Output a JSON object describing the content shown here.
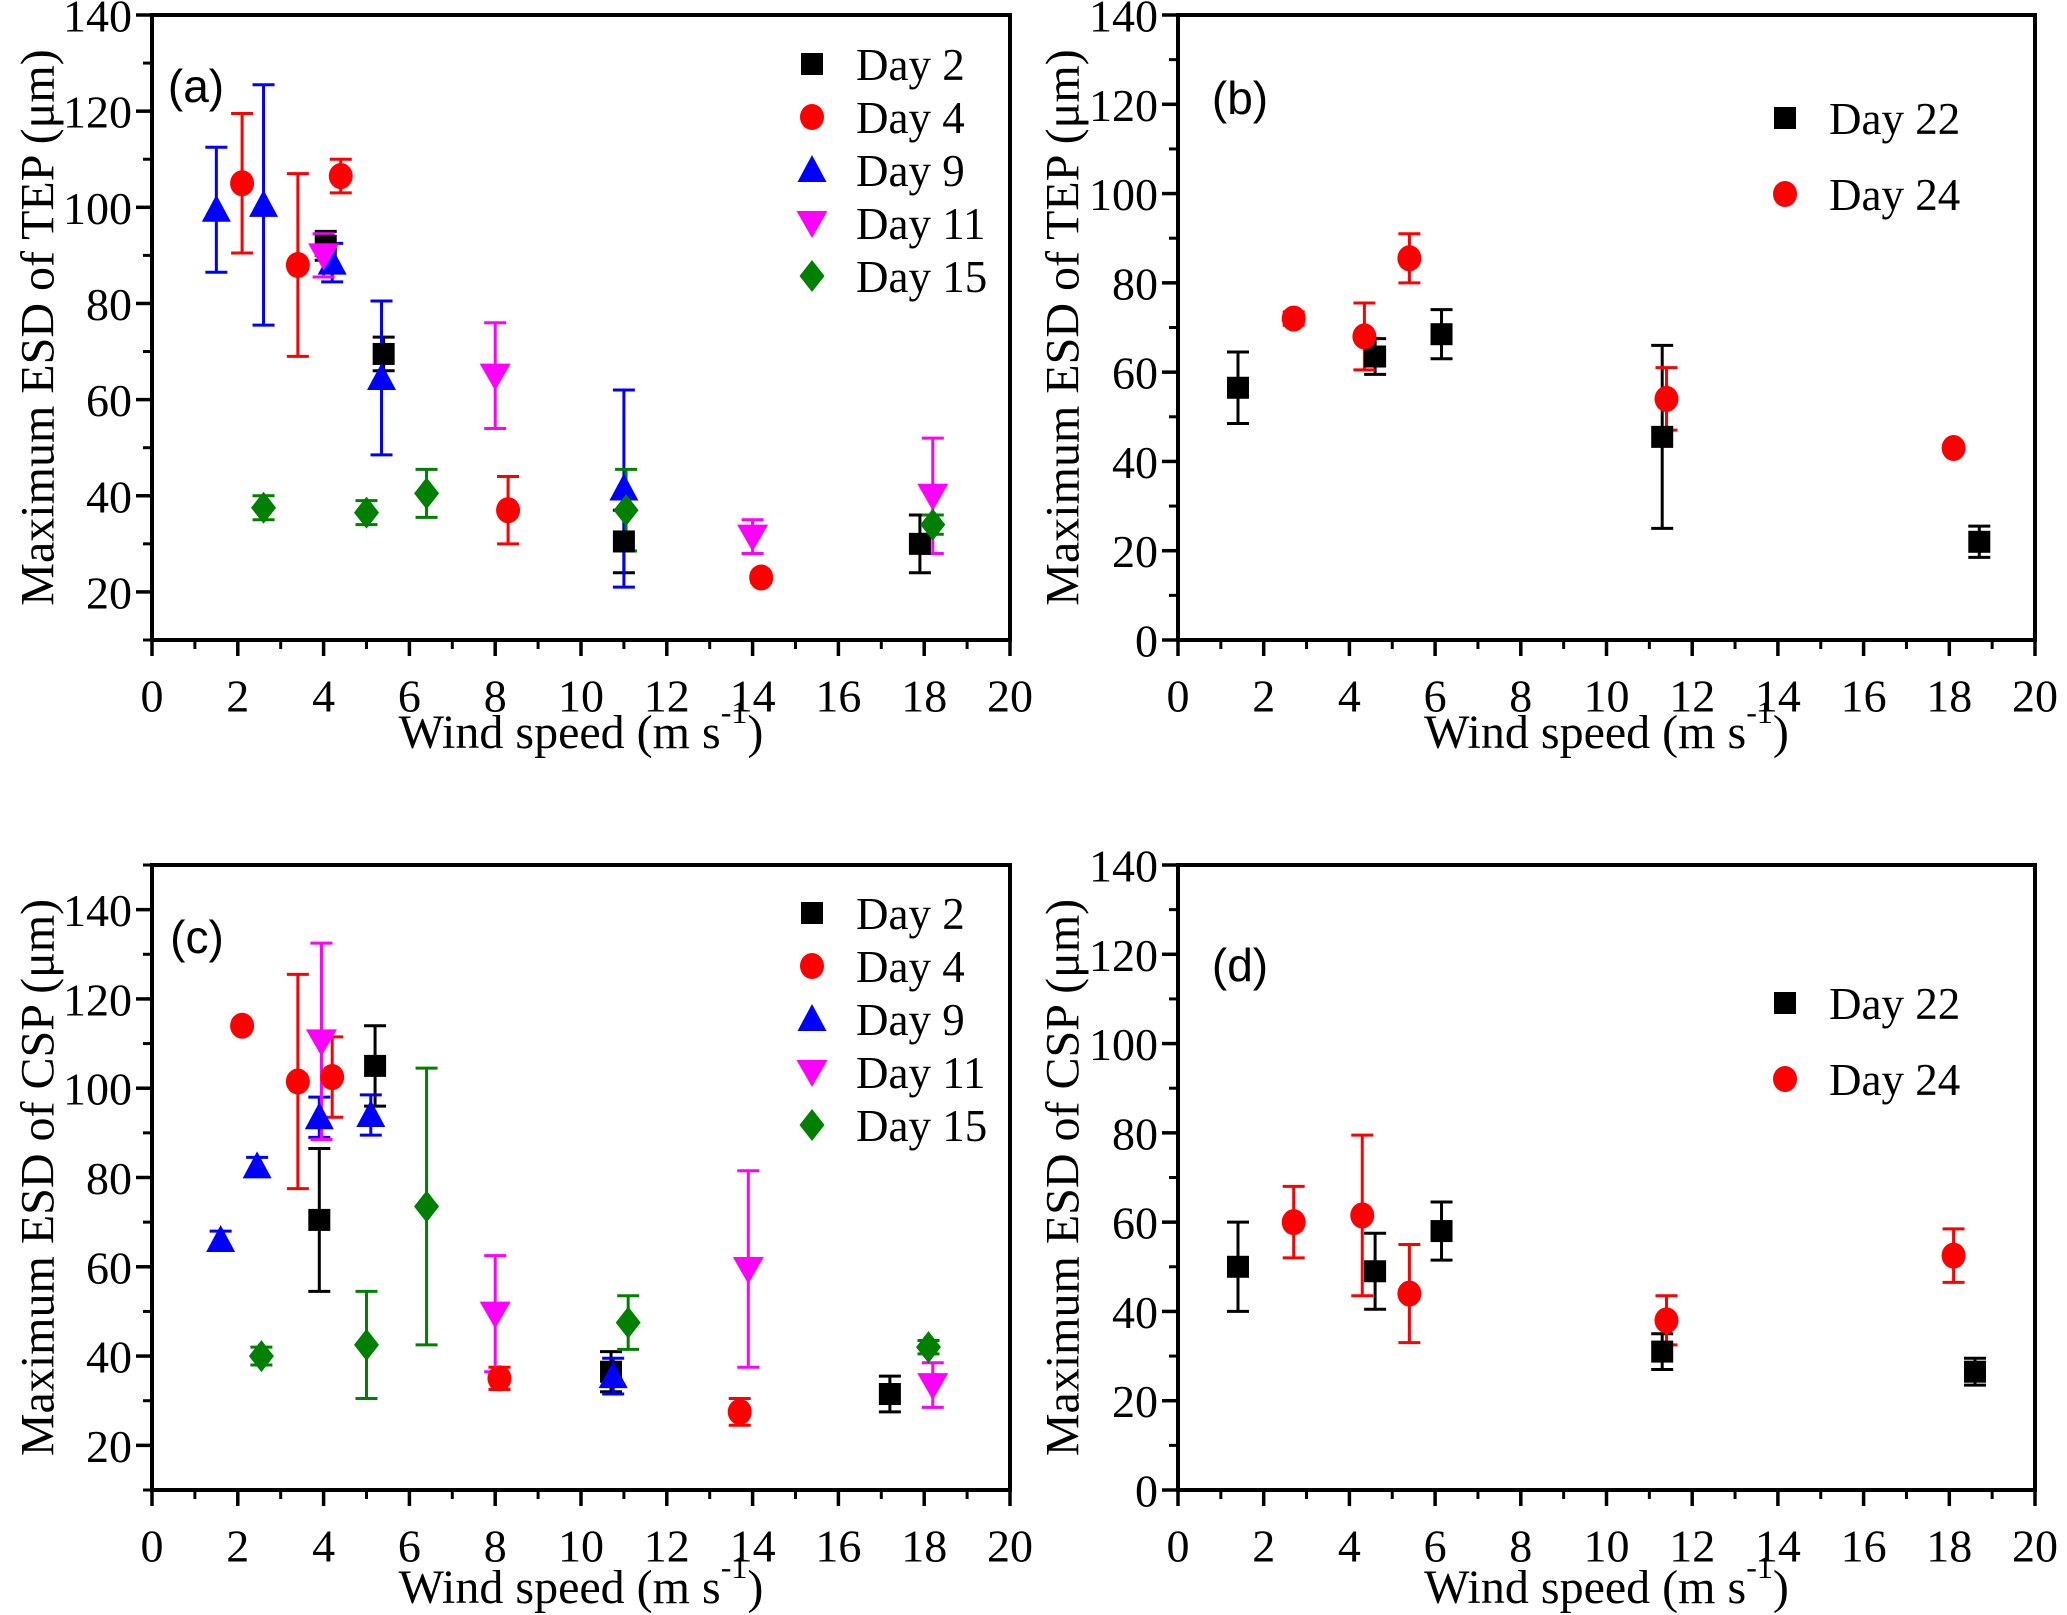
{
  "chart_data": [
    {
      "type": "scatter",
      "panel_label": "(a)",
      "xlabel": "Wind speed (m s⁻¹)",
      "xlabel_parts": {
        "base": "Wind speed (m s",
        "sup": "-1",
        "end": ")"
      },
      "ylabel": "Maximum ESD of TEP (μm)",
      "xlim": [
        0,
        20
      ],
      "ylim": [
        10,
        140
      ],
      "xtick_labels": [
        0,
        2,
        4,
        6,
        8,
        10,
        12,
        14,
        16,
        18,
        20
      ],
      "ytick_labels": [
        20,
        40,
        60,
        80,
        100,
        120,
        140
      ],
      "xtick_minor_step": 1,
      "ytick_minor_step": 10,
      "grid": false,
      "legend_position": "top-right",
      "error_bars": true,
      "series": [
        {
          "name": "Day 2",
          "marker": "square",
          "color": "#000000",
          "points": [
            [
              4.05,
              92,
              3
            ],
            [
              5.4,
              69.5,
              3.5
            ],
            [
              11.0,
              30.5,
              6.5
            ],
            [
              17.9,
              30,
              6
            ]
          ]
        },
        {
          "name": "Day 4",
          "marker": "circle",
          "color": "#ff0000",
          "points": [
            [
              2.1,
              105,
              14.5
            ],
            [
              3.4,
              88,
              19
            ],
            [
              4.4,
              106.5,
              3.5
            ],
            [
              8.3,
              37,
              7
            ],
            [
              14.2,
              23,
              1
            ]
          ]
        },
        {
          "name": "Day 9",
          "marker": "triangle-up",
          "color": "#0000ff",
          "points": [
            [
              1.5,
              99.5,
              13
            ],
            [
              2.6,
              100.5,
              25
            ],
            [
              4.2,
              88.5,
              4
            ],
            [
              5.35,
              64.5,
              16
            ],
            [
              11.0,
              41.5,
              20.5
            ]
          ]
        },
        {
          "name": "Day 11",
          "marker": "triangle-down",
          "color": "#ff00ff",
          "points": [
            [
              4.0,
              90,
              4.5
            ],
            [
              8.0,
              65,
              11
            ],
            [
              14.0,
              31.5,
              3.5
            ],
            [
              18.2,
              40,
              12
            ]
          ]
        },
        {
          "name": "Day 15",
          "marker": "diamond",
          "color": "#008000",
          "points": [
            [
              2.6,
              37.5,
              2.5
            ],
            [
              5.0,
              36.5,
              2.5
            ],
            [
              6.4,
              40.5,
              5
            ],
            [
              11.05,
              37,
              8.5
            ],
            [
              18.2,
              34,
              2
            ]
          ]
        }
      ]
    },
    {
      "type": "scatter",
      "panel_label": "(b)",
      "xlabel": "Wind speed (m s⁻¹)",
      "xlabel_parts": {
        "base": "Wind speed (m s",
        "sup": "-1",
        "end": ")"
      },
      "ylabel": "Maximum ESD of TEP (μm)",
      "xlim": [
        0,
        20
      ],
      "ylim": [
        0,
        140
      ],
      "xtick_labels": [
        0,
        2,
        4,
        6,
        8,
        10,
        12,
        14,
        16,
        18,
        20
      ],
      "ytick_labels": [
        0,
        20,
        40,
        60,
        80,
        100,
        120,
        140
      ],
      "xtick_minor_step": 1,
      "ytick_minor_step": 10,
      "grid": false,
      "legend_position": "top-right",
      "error_bars": true,
      "series": [
        {
          "name": "Day 22",
          "marker": "square",
          "color": "#000000",
          "points": [
            [
              1.4,
              56.5,
              8
            ],
            [
              4.6,
              63.5,
              4
            ],
            [
              6.15,
              68.5,
              5.5
            ],
            [
              11.3,
              45.5,
              20.5
            ],
            [
              18.7,
              22,
              3.5
            ]
          ]
        },
        {
          "name": "Day 24",
          "marker": "circle",
          "color": "#ff0000",
          "points": [
            [
              2.7,
              72,
              1.5
            ],
            [
              4.35,
              68,
              7.5
            ],
            [
              5.4,
              85.5,
              5.5
            ],
            [
              11.4,
              54,
              7
            ],
            [
              18.1,
              43,
              null
            ]
          ]
        }
      ]
    },
    {
      "type": "scatter",
      "panel_label": "(c)",
      "xlabel": "Wind speed (m s⁻¹)",
      "xlabel_parts": {
        "base": "Wind speed (m s",
        "sup": "-1",
        "end": ")"
      },
      "ylabel": "Maximum ESD of CSP (μm)",
      "xlim": [
        0,
        20
      ],
      "ylim": [
        10,
        150
      ],
      "xtick_labels": [
        0,
        2,
        4,
        6,
        8,
        10,
        12,
        14,
        16,
        18,
        20
      ],
      "ytick_labels": [
        20,
        40,
        60,
        80,
        100,
        120,
        140
      ],
      "xtick_minor_step": 1,
      "ytick_minor_step": 10,
      "grid": false,
      "legend_position": "top-right",
      "error_bars": true,
      "series": [
        {
          "name": "Day 2",
          "marker": "square",
          "color": "#000000",
          "points": [
            [
              3.9,
              70.5,
              16
            ],
            [
              5.2,
              105,
              9
            ],
            [
              10.7,
              36.5,
              4.5
            ],
            [
              17.2,
              31.5,
              4
            ]
          ]
        },
        {
          "name": "Day 4",
          "marker": "circle",
          "color": "#ff0000",
          "points": [
            [
              2.1,
              114,
              null
            ],
            [
              3.4,
              101.5,
              24
            ],
            [
              4.2,
              102.5,
              9
            ],
            [
              8.1,
              35,
              2.5
            ],
            [
              13.7,
              27.5,
              3
            ]
          ]
        },
        {
          "name": "Day 9",
          "marker": "triangle-up",
          "color": "#0000ff",
          "points": [
            [
              1.6,
              66,
              2
            ],
            [
              2.45,
              82.5,
              2
            ],
            [
              3.9,
              93.5,
              4.5
            ],
            [
              5.1,
              94,
              4.5
            ],
            [
              10.75,
              35.5,
              4
            ]
          ]
        },
        {
          "name": "Day 11",
          "marker": "triangle-down",
          "color": "#ff00ff",
          "points": [
            [
              3.95,
              110.5,
              22
            ],
            [
              8.0,
              49.5,
              13
            ],
            [
              13.9,
              59.5,
              22
            ],
            [
              18.2,
              33.5,
              5
            ]
          ]
        },
        {
          "name": "Day 15",
          "marker": "diamond",
          "color": "#008000",
          "points": [
            [
              2.55,
              40,
              2
            ],
            [
              5.0,
              42.5,
              12
            ],
            [
              6.4,
              73.5,
              31
            ],
            [
              11.1,
              47.5,
              6
            ],
            [
              18.1,
              42,
              1.5
            ]
          ]
        }
      ]
    },
    {
      "type": "scatter",
      "panel_label": "(d)",
      "xlabel": "Wind speed (m s⁻¹)",
      "xlabel_parts": {
        "base": "Wind speed (m s",
        "sup": "-1",
        "end": ")"
      },
      "ylabel": "Maximum ESD of CSP (μm)",
      "xlim": [
        0,
        20
      ],
      "ylim": [
        0,
        140
      ],
      "xtick_labels": [
        0,
        2,
        4,
        6,
        8,
        10,
        12,
        14,
        16,
        18,
        20
      ],
      "ytick_labels": [
        0,
        20,
        40,
        60,
        80,
        100,
        120,
        140
      ],
      "xtick_minor_step": 1,
      "ytick_minor_step": 10,
      "grid": false,
      "legend_position": "top-right",
      "error_bars": true,
      "series": [
        {
          "name": "Day 22",
          "marker": "square",
          "color": "#000000",
          "points": [
            [
              1.4,
              50,
              10
            ],
            [
              4.6,
              49,
              8.5
            ],
            [
              6.15,
              58,
              6.5
            ],
            [
              11.3,
              31,
              4
            ],
            [
              18.6,
              26.5,
              3
            ]
          ]
        },
        {
          "name": "Day 24",
          "marker": "circle",
          "color": "#ff0000",
          "points": [
            [
              2.7,
              60,
              8
            ],
            [
              4.3,
              61.5,
              18
            ],
            [
              5.4,
              44,
              11
            ],
            [
              11.4,
              38,
              5.5
            ],
            [
              18.1,
              52.5,
              6
            ]
          ]
        }
      ]
    }
  ]
}
